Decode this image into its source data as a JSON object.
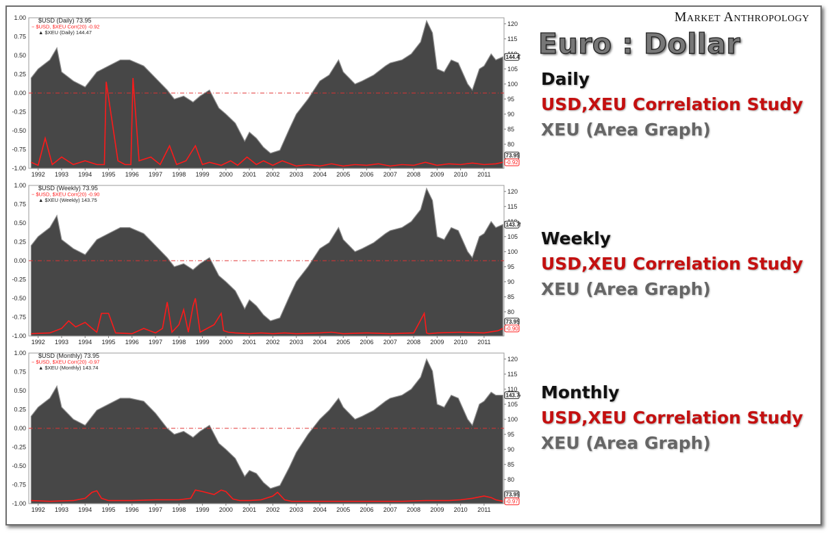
{
  "brand": "Market Anthropology",
  "title": "Euro : Dollar",
  "colors": {
    "area": "#474747",
    "area_edge": "#8d8d8d",
    "correlation": "#ff1a1a",
    "zero_line": "#e03030"
  },
  "legend_blocks": [
    {
      "timeframe": "Daily",
      "line1": "USD,XEU Correlation Study",
      "line2": "XEU (Area Graph)"
    },
    {
      "timeframe": "Weekly",
      "line1": "USD,XEU Correlation Study",
      "line2": "XEU (Area Graph)"
    },
    {
      "timeframe": "Monthly",
      "line1": "USD,XEU Correlation Study",
      "line2": "XEU (Area Graph)"
    }
  ],
  "chart_data": [
    {
      "type": "area",
      "timeframe": "Daily",
      "legend": [
        "$USD (Daily) 73.95",
        "$USD, $XEU Corr(20) -0.92",
        "$XEU (Daily) 144.47"
      ],
      "x_ticks": [
        "1992",
        "1993",
        "1994",
        "1995",
        "1996",
        "1997",
        "1998",
        "1999",
        "2000",
        "2001",
        "2002",
        "2003",
        "2004",
        "2005",
        "2006",
        "2007",
        "2008",
        "2009",
        "2010",
        "2011"
      ],
      "left_axis": {
        "ticks": [
          "1.00",
          "0.75",
          "0.50",
          "0.25",
          "0.00",
          "-0.25",
          "-0.50",
          "-0.75",
          "-1.00"
        ],
        "ylim": [
          -1,
          1
        ]
      },
      "right_axis": {
        "ticks": [
          "120",
          "115",
          "110",
          "105",
          "100",
          "95",
          "90",
          "85",
          "80",
          "75"
        ],
        "ylim": [
          72,
          122
        ]
      },
      "last_value_labels": [
        "144.47",
        "73.95",
        "-0.92"
      ],
      "xeu_series": {
        "name": "$XEU",
        "x": [
          1991.7,
          1992.0,
          1992.5,
          1992.8,
          1993.0,
          1993.5,
          1994.0,
          1994.5,
          1995.0,
          1995.5,
          1995.9,
          1996.5,
          1997.0,
          1997.5,
          1997.8,
          1998.2,
          1998.6,
          1998.9,
          1999.3,
          1999.7,
          2000.0,
          2000.4,
          2000.8,
          2001.0,
          2001.3,
          2001.6,
          2001.9,
          2002.3,
          2002.7,
          2003.0,
          2003.5,
          2004.0,
          2004.4,
          2004.8,
          2005.0,
          2005.5,
          2005.8,
          2006.3,
          2006.8,
          2007.0,
          2007.5,
          2007.9,
          2008.3,
          2008.55,
          2008.8,
          2009.0,
          2009.3,
          2009.6,
          2009.9,
          2010.3,
          2010.5,
          2010.8,
          2011.0,
          2011.3,
          2011.5,
          2011.8
        ],
        "y": [
          102,
          105,
          108,
          112,
          104,
          101,
          99,
          104,
          106,
          108,
          108,
          106,
          102,
          98,
          95,
          96,
          94,
          96,
          98,
          92,
          90,
          87,
          81,
          84,
          82,
          79,
          77,
          78,
          85,
          90,
          95,
          101,
          103,
          108,
          104,
          100,
          101,
          103,
          106,
          107,
          108,
          110,
          114,
          121,
          117,
          105,
          104,
          108,
          107,
          100,
          98,
          105,
          106,
          110,
          108,
          109
        ]
      },
      "corr_series": {
        "name": "$USD, $XEU Corr(20)",
        "x": [
          1991.7,
          1992.0,
          1992.3,
          1992.6,
          1993.0,
          1993.5,
          1994.0,
          1994.5,
          1994.82,
          1994.9,
          1995.4,
          1995.7,
          1995.95,
          1996.04,
          1996.3,
          1996.8,
          1997.2,
          1997.6,
          1997.9,
          1998.3,
          1998.7,
          1999.0,
          1999.3,
          1999.8,
          2000.2,
          2000.5,
          2000.9,
          2001.3,
          2001.6,
          2002.0,
          2002.4,
          2003.0,
          2003.5,
          2004.0,
          2004.5,
          2005.0,
          2005.5,
          2006.0,
          2006.5,
          2007.0,
          2007.5,
          2008.0,
          2008.5,
          2009.0,
          2009.5,
          2010.0,
          2010.5,
          2011.0,
          2011.5,
          2011.8
        ],
        "y": [
          -0.92,
          -0.96,
          -0.6,
          -0.95,
          -0.85,
          -0.95,
          -0.9,
          -0.95,
          -0.95,
          0.15,
          -0.9,
          -0.95,
          -0.95,
          0.2,
          -0.9,
          -0.85,
          -0.95,
          -0.7,
          -0.95,
          -0.9,
          -0.7,
          -0.95,
          -0.92,
          -0.96,
          -0.9,
          -0.96,
          -0.85,
          -0.95,
          -0.9,
          -0.96,
          -0.9,
          -0.97,
          -0.95,
          -0.97,
          -0.94,
          -0.97,
          -0.95,
          -0.96,
          -0.94,
          -0.97,
          -0.95,
          -0.96,
          -0.92,
          -0.96,
          -0.94,
          -0.95,
          -0.93,
          -0.95,
          -0.94,
          -0.92
        ]
      }
    },
    {
      "type": "area",
      "timeframe": "Weekly",
      "legend": [
        "$USD (Weekly) 73.95",
        "$USD, $XEU Corr(20) -0.90",
        "$XEU (Weekly) 143.75"
      ],
      "x_ticks": [
        "1992",
        "1993",
        "1994",
        "1995",
        "1996",
        "1997",
        "1998",
        "1999",
        "2000",
        "2001",
        "2002",
        "2003",
        "2004",
        "2005",
        "2006",
        "2007",
        "2008",
        "2009",
        "2010",
        "2011"
      ],
      "left_axis": {
        "ticks": [
          "1.00",
          "0.75",
          "0.50",
          "0.25",
          "0.00",
          "-0.25",
          "-0.50",
          "-0.75",
          "-1.00"
        ],
        "ylim": [
          -1,
          1
        ]
      },
      "right_axis": {
        "ticks": [
          "120",
          "115",
          "110",
          "105",
          "100",
          "95",
          "90",
          "85",
          "80",
          "75"
        ],
        "ylim": [
          72,
          122
        ]
      },
      "last_value_labels": [
        "143.75",
        "73.95",
        "-0.90"
      ],
      "xeu_series": {
        "name": "$XEU",
        "x": [
          1991.7,
          1992.0,
          1992.5,
          1992.8,
          1993.0,
          1993.5,
          1994.0,
          1994.5,
          1995.0,
          1995.5,
          1995.9,
          1996.5,
          1997.0,
          1997.5,
          1997.8,
          1998.2,
          1998.6,
          1998.9,
          1999.3,
          1999.7,
          2000.0,
          2000.4,
          2000.8,
          2001.0,
          2001.3,
          2001.6,
          2001.9,
          2002.3,
          2002.7,
          2003.0,
          2003.5,
          2004.0,
          2004.4,
          2004.8,
          2005.0,
          2005.5,
          2005.8,
          2006.3,
          2006.8,
          2007.0,
          2007.5,
          2007.9,
          2008.3,
          2008.55,
          2008.8,
          2009.0,
          2009.3,
          2009.6,
          2009.9,
          2010.3,
          2010.5,
          2010.8,
          2011.0,
          2011.3,
          2011.5,
          2011.8
        ],
        "y": [
          102,
          105,
          108,
          112,
          104,
          101,
          99,
          104,
          106,
          108,
          108,
          106,
          102,
          98,
          95,
          96,
          94,
          96,
          98,
          92,
          90,
          87,
          81,
          84,
          82,
          79,
          77,
          78,
          85,
          90,
          95,
          101,
          103,
          108,
          104,
          100,
          101,
          103,
          106,
          107,
          108,
          110,
          114,
          121,
          117,
          105,
          104,
          108,
          107,
          100,
          98,
          105,
          106,
          110,
          108,
          109
        ]
      },
      "corr_series": {
        "name": "$USD, $XEU Corr(20)",
        "x": [
          1991.7,
          1992.5,
          1993.0,
          1993.3,
          1993.6,
          1994.0,
          1994.3,
          1994.5,
          1994.7,
          1995.0,
          1995.3,
          1996.0,
          1996.5,
          1997.0,
          1997.3,
          1997.5,
          1997.7,
          1998.0,
          1998.2,
          1998.4,
          1998.6,
          1998.7,
          1998.9,
          1999.2,
          1999.5,
          1999.8,
          1999.9,
          2000.1,
          2000.4,
          2001.0,
          2001.5,
          2002.0,
          2002.5,
          2003.0,
          2004.0,
          2004.5,
          2005.0,
          2006.0,
          2007.0,
          2008.0,
          2008.45,
          2008.55,
          2008.65,
          2009.0,
          2010.0,
          2011.0,
          2011.6,
          2011.8
        ],
        "y": [
          -0.97,
          -0.96,
          -0.9,
          -0.8,
          -0.88,
          -0.82,
          -0.9,
          -0.95,
          -0.7,
          -0.7,
          -0.96,
          -0.97,
          -0.9,
          -0.96,
          -0.9,
          -0.55,
          -0.95,
          -0.85,
          -0.65,
          -0.95,
          -0.6,
          -0.5,
          -0.95,
          -0.9,
          -0.85,
          -0.7,
          -0.93,
          -0.95,
          -0.96,
          -0.97,
          -0.96,
          -0.97,
          -0.96,
          -0.97,
          -0.96,
          -0.95,
          -0.97,
          -0.96,
          -0.97,
          -0.96,
          -0.7,
          -0.96,
          -0.97,
          -0.96,
          -0.95,
          -0.96,
          -0.93,
          -0.9
        ]
      }
    },
    {
      "type": "area",
      "timeframe": "Monthly",
      "legend": [
        "$USD (Monthly) 73.95",
        "$USD, $XEU Corr(20) -0.97",
        "$XEU (Monthly) 143.74"
      ],
      "x_ticks": [
        "1992",
        "1993",
        "1994",
        "1995",
        "1996",
        "1997",
        "1998",
        "1999",
        "2000",
        "2001",
        "2002",
        "2003",
        "2004",
        "2005",
        "2006",
        "2007",
        "2008",
        "2009",
        "2010",
        "2011"
      ],
      "left_axis": {
        "ticks": [
          "1.00",
          "0.75",
          "0.50",
          "0.25",
          "0.00",
          "-0.25",
          "-0.50",
          "-0.75",
          "-1.00"
        ],
        "ylim": [
          -1,
          1
        ]
      },
      "right_axis": {
        "ticks": [
          "120",
          "115",
          "110",
          "105",
          "100",
          "95",
          "90",
          "85",
          "80",
          "75"
        ],
        "ylim": [
          72,
          122
        ]
      },
      "last_value_labels": [
        "143.74",
        "73.95",
        "-0.97"
      ],
      "xeu_series": {
        "name": "$XEU",
        "x": [
          1991.7,
          1992.0,
          1992.5,
          1992.8,
          1993.0,
          1993.5,
          1994.0,
          1994.5,
          1995.0,
          1995.5,
          1995.9,
          1996.5,
          1997.0,
          1997.5,
          1997.8,
          1998.2,
          1998.6,
          1998.9,
          1999.3,
          1999.7,
          2000.0,
          2000.4,
          2000.8,
          2001.0,
          2001.3,
          2001.6,
          2001.9,
          2002.3,
          2002.7,
          2003.0,
          2003.5,
          2004.0,
          2004.4,
          2004.8,
          2005.0,
          2005.5,
          2005.8,
          2006.3,
          2006.8,
          2007.0,
          2007.5,
          2007.9,
          2008.3,
          2008.55,
          2008.8,
          2009.0,
          2009.3,
          2009.6,
          2009.9,
          2010.3,
          2010.5,
          2010.8,
          2011.0,
          2011.3,
          2011.5,
          2011.8
        ],
        "y": [
          101,
          104,
          107,
          111,
          104,
          100,
          98,
          103,
          105,
          107,
          107,
          106,
          102,
          97,
          95,
          96,
          94,
          96,
          98,
          92,
          90,
          87,
          81,
          83,
          82,
          79,
          77,
          78,
          84,
          89,
          95,
          100,
          103,
          107,
          104,
          100,
          101,
          103,
          106,
          107,
          108,
          110,
          114,
          120,
          116,
          105,
          104,
          108,
          107,
          100,
          98,
          105,
          106,
          109,
          108,
          108
        ]
      },
      "corr_series": {
        "name": "$USD, $XEU Corr(20)",
        "x": [
          1991.7,
          1992.5,
          1993.5,
          1994.0,
          1994.3,
          1994.5,
          1994.7,
          1995.0,
          1996.0,
          1997.0,
          1998.0,
          1998.5,
          1998.7,
          1999.0,
          1999.5,
          1999.8,
          2000.0,
          2000.3,
          2000.6,
          2001.0,
          2001.5,
          2002.0,
          2002.2,
          2002.5,
          2002.8,
          2003.5,
          2004.5,
          2005.5,
          2006.5,
          2007.5,
          2008.5,
          2009.5,
          2010.0,
          2010.5,
          2011.0,
          2011.3,
          2011.5,
          2011.8
        ],
        "y": [
          -0.96,
          -0.97,
          -0.96,
          -0.93,
          -0.85,
          -0.83,
          -0.93,
          -0.96,
          -0.96,
          -0.95,
          -0.95,
          -0.93,
          -0.82,
          -0.84,
          -0.88,
          -0.82,
          -0.84,
          -0.94,
          -0.96,
          -0.96,
          -0.95,
          -0.9,
          -0.85,
          -0.95,
          -0.97,
          -0.97,
          -0.97,
          -0.97,
          -0.97,
          -0.97,
          -0.96,
          -0.96,
          -0.95,
          -0.93,
          -0.9,
          -0.92,
          -0.95,
          -0.97
        ]
      }
    }
  ]
}
